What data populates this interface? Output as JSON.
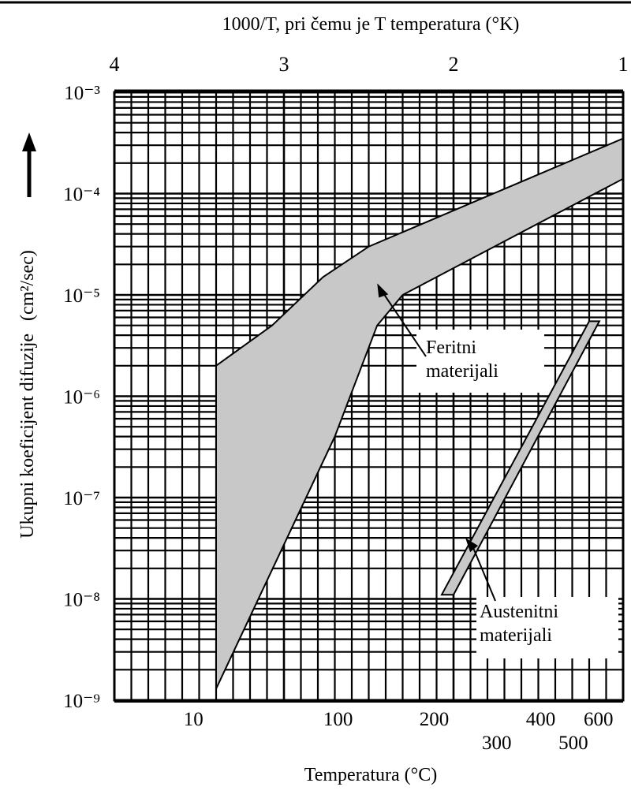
{
  "chart_data": {
    "type": "area",
    "title": "",
    "top_axis": {
      "label": "1000/T, pri čemu je T temperatura (°K)",
      "ticks": [
        "4",
        "3",
        "2",
        "1"
      ],
      "tick_values": [
        4,
        3,
        2,
        1
      ],
      "range": [
        4,
        1
      ]
    },
    "x_axis": {
      "label": "Temperatura (°C)",
      "scale": "reciprocal (1000/T)",
      "ticks": [
        "10",
        "100",
        "200",
        "300",
        "400",
        "500",
        "600"
      ],
      "tick_values": [
        10,
        100,
        200,
        300,
        400,
        500,
        600
      ]
    },
    "y_axis": {
      "label_main": "Ukupni koeficijent difuzije",
      "label_unit": "(cm²/sec)",
      "scale": "log",
      "ylim": [
        1e-09,
        0.001
      ],
      "ticks": [
        "10⁻⁹",
        "10⁻⁸",
        "10⁻⁷",
        "10⁻⁶",
        "10⁻⁵",
        "10⁻⁴",
        "10⁻³"
      ],
      "tick_values": [
        1e-09,
        1e-08,
        1e-07,
        1e-06,
        1e-05,
        0.0001,
        0.001
      ]
    },
    "grid": true,
    "series": [
      {
        "name": "Feritni materijali",
        "kind": "band",
        "color": "#c8c8c8",
        "upper": [
          {
            "x": 3.4,
            "y": 2e-06
          },
          {
            "x": 3.07,
            "y": 5e-06
          },
          {
            "x": 2.77,
            "y": 1.5e-05
          },
          {
            "x": 2.5,
            "y": 3e-05
          },
          {
            "x": 1.0,
            "y": 0.00035
          }
        ],
        "lower": [
          {
            "x": 3.4,
            "y": 1.3e-09
          },
          {
            "x": 2.7,
            "y": 4e-07
          },
          {
            "x": 2.45,
            "y": 5e-06
          },
          {
            "x": 2.3,
            "y": 1e-05
          },
          {
            "x": 1.0,
            "y": 0.00014
          }
        ]
      },
      {
        "name": "Austenitni materijali",
        "kind": "band",
        "color": "#c8c8c8",
        "upper": [
          {
            "x": 2.07,
            "y": 1.1e-08
          },
          {
            "x": 1.2,
            "y": 5.5e-06
          }
        ],
        "lower": [
          {
            "x": 2.0,
            "y": 1.1e-08
          },
          {
            "x": 1.14,
            "y": 5.5e-06
          }
        ]
      }
    ],
    "annotations": [
      {
        "text_lines": [
          "Feritni",
          "materijali"
        ],
        "arrow_to": {
          "x": 2.45,
          "y": 1.3e-05
        }
      },
      {
        "text_lines": [
          "Austenitni",
          "materijali"
        ],
        "arrow_to": {
          "x": 1.93,
          "y": 4e-08
        }
      }
    ]
  }
}
